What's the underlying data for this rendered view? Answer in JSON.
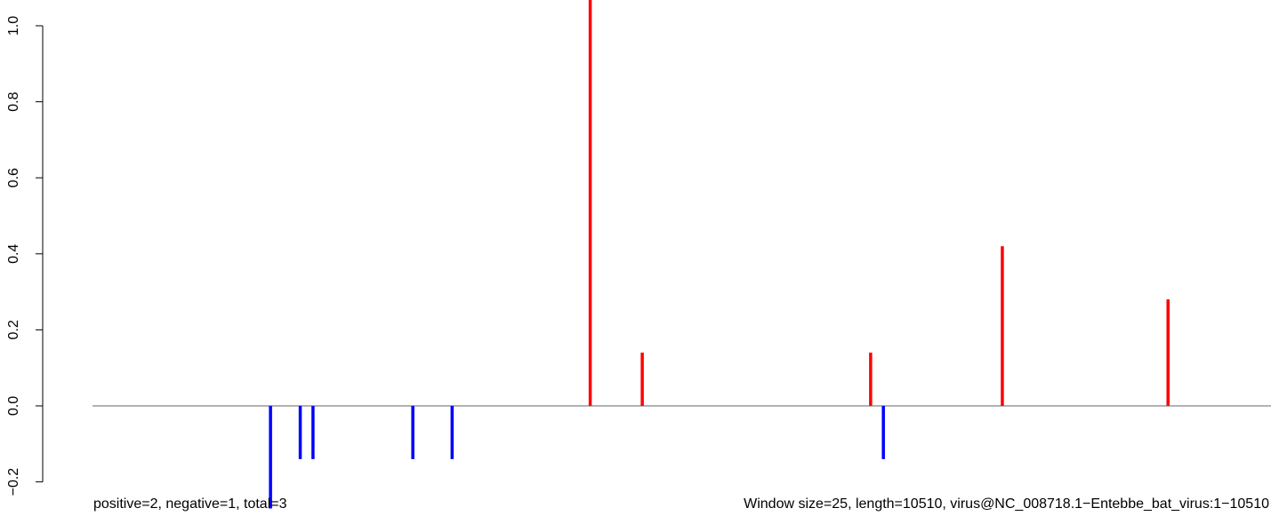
{
  "chart_data": {
    "type": "bar",
    "subtype": "vertical-spikes",
    "title": "",
    "xlabel": "",
    "ylabel": "",
    "ylim": [
      -0.2,
      1.0
    ],
    "y_ticks": [
      "−0.2",
      "0.0",
      "0.2",
      "0.4",
      "0.6",
      "0.8",
      "1.0"
    ],
    "y_tick_values": [
      -0.2,
      0.0,
      0.2,
      0.4,
      0.6,
      0.8,
      1.0
    ],
    "x_axis_visible": false,
    "zero_line_color": "#999999",
    "grid": false,
    "series": [
      {
        "name": "positive",
        "color": "#ff0000",
        "points": [
          {
            "x": 4310,
            "y": 1.1
          },
          {
            "x": 4800,
            "y": 0.14
          },
          {
            "x": 6950,
            "y": 0.14
          },
          {
            "x": 8190,
            "y": 0.42
          },
          {
            "x": 9750,
            "y": 0.28
          }
        ]
      },
      {
        "name": "negative",
        "color": "#0000ff",
        "points": [
          {
            "x": 1300,
            "y": -0.27
          },
          {
            "x": 1580,
            "y": -0.14
          },
          {
            "x": 1700,
            "y": -0.14
          },
          {
            "x": 2640,
            "y": -0.14
          },
          {
            "x": 3010,
            "y": -0.14
          },
          {
            "x": 7070,
            "y": -0.14
          }
        ]
      }
    ],
    "xlim": [
      1,
      10510
    ]
  },
  "captions": {
    "left": "positive=2, negative=1, total=3",
    "right": "Window size=25, length=10510, virus@NC_008718.1−Entebbe_bat_virus:1−10510"
  }
}
